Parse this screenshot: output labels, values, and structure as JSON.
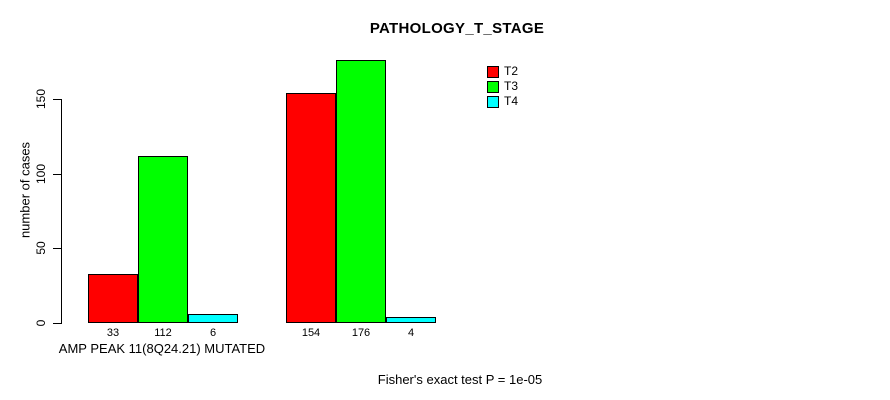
{
  "title": "PATHOLOGY_T_STAGE",
  "chart_data": {
    "type": "bar",
    "title": "PATHOLOGY_T_STAGE",
    "ylabel": "number of cases",
    "xlabel": "AMP PEAK 11(8Q24.21) MUTATED",
    "footnote": "Fisher's exact test P = 1e-05",
    "ylim": [
      0,
      150
    ],
    "yticks": [
      0,
      50,
      100,
      150
    ],
    "grid": false,
    "legend_position": "top-right",
    "categories": [
      "AMP PEAK 11(8Q24.21) MUTATED",
      ""
    ],
    "series": [
      {
        "name": "T2",
        "color": "#ff0000",
        "values": [
          33,
          154
        ]
      },
      {
        "name": "T3",
        "color": "#00ff00",
        "values": [
          112,
          176
        ]
      },
      {
        "name": "T4",
        "color": "#00ffff",
        "values": [
          6,
          4
        ]
      }
    ]
  },
  "legend": {
    "items": [
      {
        "label": "T2",
        "color": "#ff0000"
      },
      {
        "label": "T3",
        "color": "#00ff00"
      },
      {
        "label": "T4",
        "color": "#00ffff"
      }
    ]
  },
  "footer": {
    "text": "Fisher's exact test P = 1e-05"
  }
}
